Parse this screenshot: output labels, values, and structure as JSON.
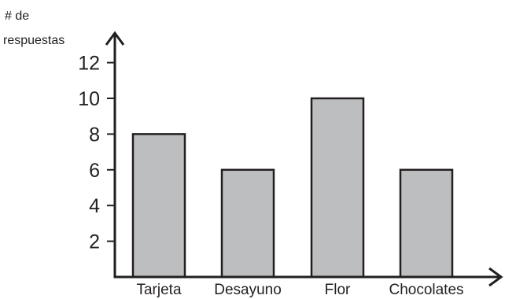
{
  "chart_data": {
    "type": "bar",
    "categories": [
      "Tarjeta",
      "Desayuno",
      "Flor",
      "Chocolates"
    ],
    "values": [
      8,
      6,
      10,
      6
    ],
    "ylabel_lines": [
      "# de",
      "respuestas"
    ],
    "xlabel": "",
    "yticks": [
      2,
      4,
      6,
      8,
      10,
      12
    ],
    "ylim": [
      0,
      13
    ],
    "grid": false,
    "colors": {
      "bar_fill": "#bcbec0",
      "bar_stroke": "#231f20",
      "axis": "#231f20"
    }
  }
}
